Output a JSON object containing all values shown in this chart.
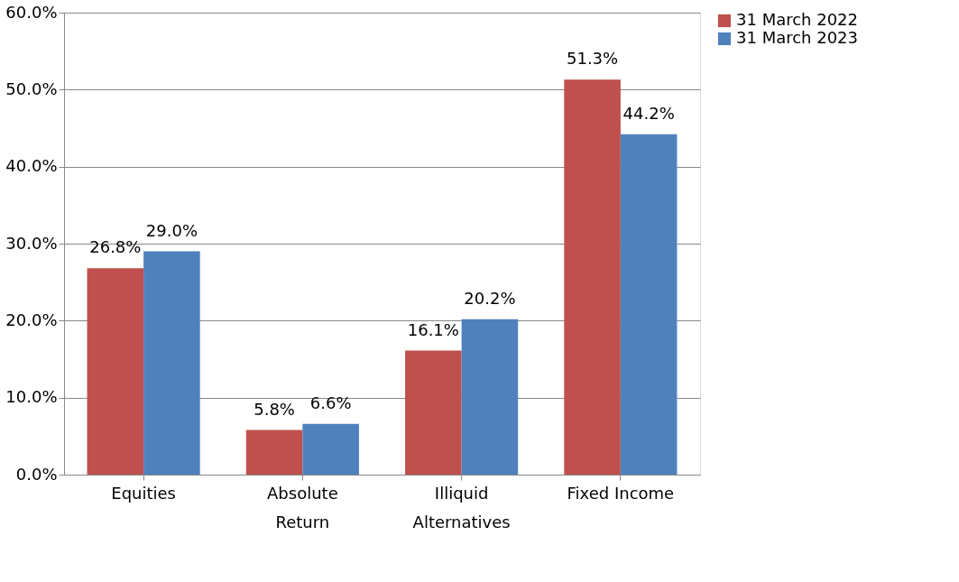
{
  "chart_data": {
    "type": "bar",
    "categories": [
      "Equities",
      "Absolute Return",
      "Illiquid Alternatives",
      "Fixed Income"
    ],
    "series": [
      {
        "name": "31 March 2022",
        "color": "#c0504d",
        "values": [
          26.8,
          5.8,
          16.1,
          51.3
        ],
        "value_labels": [
          "26.8%",
          "5.8%",
          "16.1%",
          "51.3%"
        ]
      },
      {
        "name": "31 March 2023",
        "color": "#4f81bd",
        "values": [
          29.0,
          6.6,
          20.2,
          44.2
        ],
        "value_labels": [
          "29.0%",
          "6.6%",
          "20.2%",
          "44.2%"
        ]
      }
    ],
    "ylim": [
      0,
      60
    ],
    "yticks": [
      {
        "value": 0,
        "label": "0.0%"
      },
      {
        "value": 10,
        "label": "10.0%"
      },
      {
        "value": 20,
        "label": "20.0%"
      },
      {
        "value": 30,
        "label": "30.0%"
      },
      {
        "value": 40,
        "label": "40.0%"
      },
      {
        "value": 50,
        "label": "50.0%"
      },
      {
        "value": 60,
        "label": "60.0%"
      }
    ],
    "grid": "y",
    "legend": "right"
  }
}
